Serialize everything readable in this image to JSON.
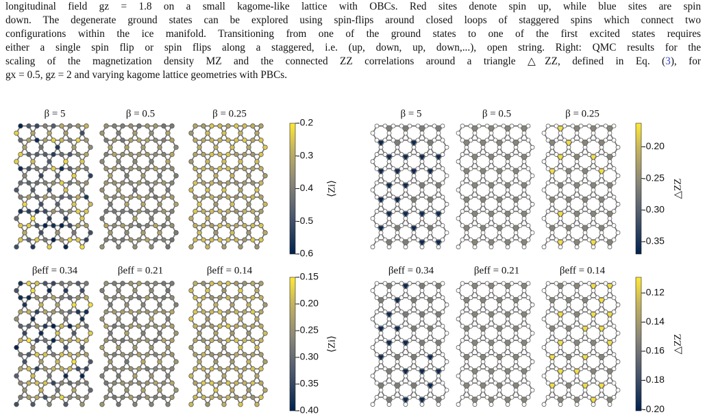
{
  "caption": {
    "lines": [
      "longitudinal field gz = 1.8 on a small kagome-like lattice with OBCs. Red sites denote spin up, while blue sites are spin",
      "down. The degenerate ground states can be explored using spin-flips around closed loops of staggered spins which connect two",
      "configurations within the ice manifold. Transitioning from one of the ground states to one of the first excited states requires",
      "either a single spin flip or spin flips along a staggered, i.e. (up, down, up, down,...), open string. Right: QMC results for the"
    ],
    "line5": [
      "scaling of the magnetization density MZ and the connected ZZ correlations around a triangle △ZZ, defined in Eq. (",
      "3",
      "), for"
    ],
    "line6": "gx = 0.5, gz = 2 and varying kagome lattice geometries with PBCs."
  },
  "panels": {
    "left": {
      "top": {
        "titles": [
          "β = 5",
          "β = 0.5",
          "β = 0.25"
        ],
        "colorbar": {
          "ticks": [
            "-0.2",
            "-0.3",
            "-0.4",
            "-0.5",
            "-0.6"
          ],
          "label": "⟨Zi⟩"
        }
      },
      "bottom": {
        "titles": [
          "βeff = 0.34",
          "βeff = 0.21",
          "βeff = 0.14"
        ],
        "colorbar": {
          "ticks": [
            "-0.15",
            "-0.20",
            "-0.25",
            "-0.30",
            "-0.35",
            "-0.40"
          ],
          "label": "⟨Zi⟩"
        }
      }
    },
    "right": {
      "top": {
        "titles": [
          "β = 5",
          "β = 0.5",
          "β = 0.25"
        ],
        "colorbar": {
          "ticks": [
            "-0.20",
            "-0.25",
            "-0.30",
            "-0.35"
          ],
          "label": "△ZZ"
        }
      },
      "bottom": {
        "titles": [
          "βeff = 0.34",
          "βeff = 0.21",
          "βeff = 0.14"
        ],
        "colorbar": {
          "ticks": [
            "-0.12",
            "-0.14",
            "-0.16",
            "-0.18",
            "-0.20"
          ],
          "label": "△ZZ"
        }
      }
    }
  }
}
